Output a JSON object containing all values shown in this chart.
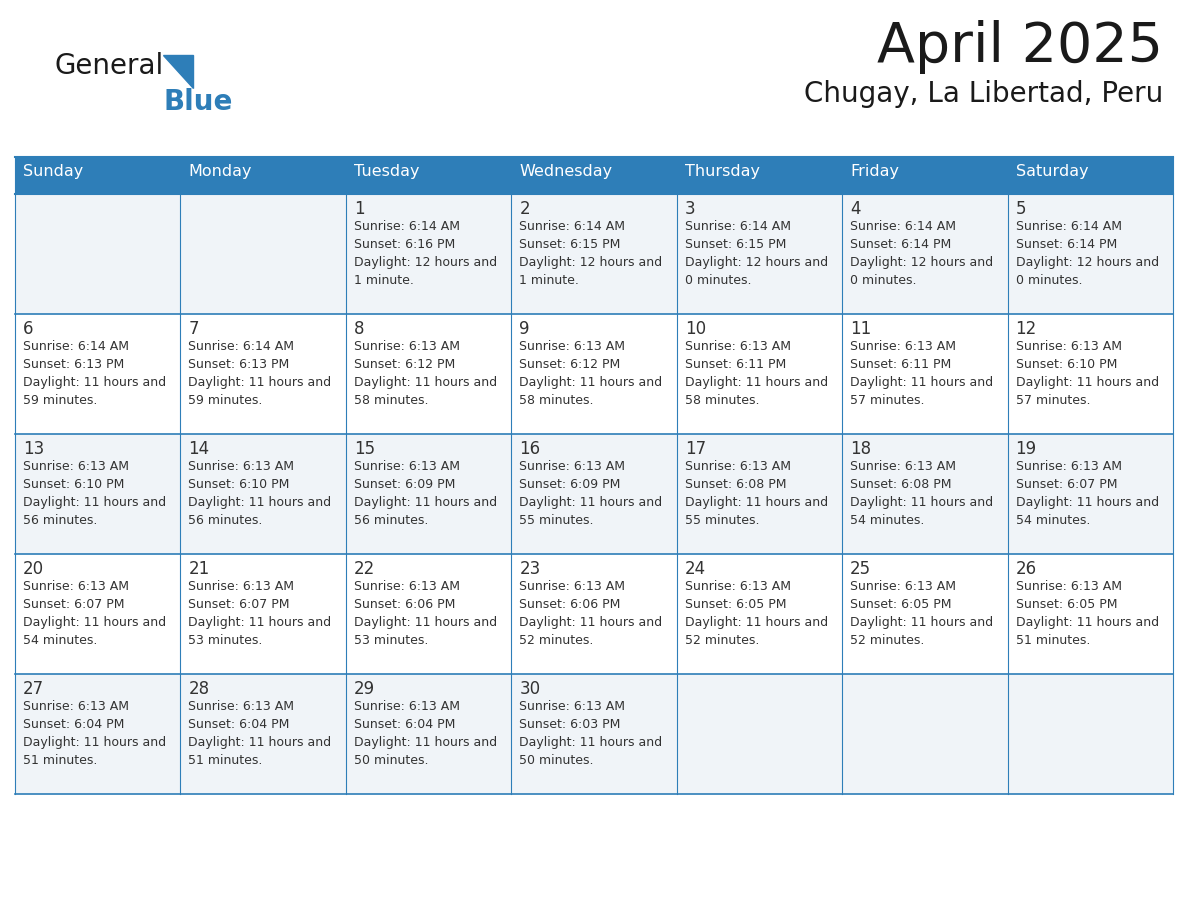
{
  "title": "April 2025",
  "subtitle": "Chugay, La Libertad, Peru",
  "header_bg_color": "#2E7EB8",
  "header_text_color": "#FFFFFF",
  "day_names": [
    "Sunday",
    "Monday",
    "Tuesday",
    "Wednesday",
    "Thursday",
    "Friday",
    "Saturday"
  ],
  "row0_bg": "#F0F4F8",
  "row1_bg": "#FFFFFF",
  "row2_bg": "#F0F4F8",
  "row3_bg": "#FFFFFF",
  "row4_bg": "#F0F4F8",
  "cell_border_color": "#2E7EB8",
  "text_color": "#333333",
  "title_color": "#1a1a1a",
  "logo_general_color": "#1a1a1a",
  "logo_blue_color": "#2E7EB8",
  "days": [
    {
      "day": 1,
      "col": 2,
      "row": 0,
      "sunrise": "6:14 AM",
      "sunset": "6:16 PM",
      "daylight": "12 hours and 1 minute."
    },
    {
      "day": 2,
      "col": 3,
      "row": 0,
      "sunrise": "6:14 AM",
      "sunset": "6:15 PM",
      "daylight": "12 hours and 1 minute."
    },
    {
      "day": 3,
      "col": 4,
      "row": 0,
      "sunrise": "6:14 AM",
      "sunset": "6:15 PM",
      "daylight": "12 hours and 0 minutes."
    },
    {
      "day": 4,
      "col": 5,
      "row": 0,
      "sunrise": "6:14 AM",
      "sunset": "6:14 PM",
      "daylight": "12 hours and 0 minutes."
    },
    {
      "day": 5,
      "col": 6,
      "row": 0,
      "sunrise": "6:14 AM",
      "sunset": "6:14 PM",
      "daylight": "12 hours and 0 minutes."
    },
    {
      "day": 6,
      "col": 0,
      "row": 1,
      "sunrise": "6:14 AM",
      "sunset": "6:13 PM",
      "daylight": "11 hours and 59 minutes."
    },
    {
      "day": 7,
      "col": 1,
      "row": 1,
      "sunrise": "6:14 AM",
      "sunset": "6:13 PM",
      "daylight": "11 hours and 59 minutes."
    },
    {
      "day": 8,
      "col": 2,
      "row": 1,
      "sunrise": "6:13 AM",
      "sunset": "6:12 PM",
      "daylight": "11 hours and 58 minutes."
    },
    {
      "day": 9,
      "col": 3,
      "row": 1,
      "sunrise": "6:13 AM",
      "sunset": "6:12 PM",
      "daylight": "11 hours and 58 minutes."
    },
    {
      "day": 10,
      "col": 4,
      "row": 1,
      "sunrise": "6:13 AM",
      "sunset": "6:11 PM",
      "daylight": "11 hours and 58 minutes."
    },
    {
      "day": 11,
      "col": 5,
      "row": 1,
      "sunrise": "6:13 AM",
      "sunset": "6:11 PM",
      "daylight": "11 hours and 57 minutes."
    },
    {
      "day": 12,
      "col": 6,
      "row": 1,
      "sunrise": "6:13 AM",
      "sunset": "6:10 PM",
      "daylight": "11 hours and 57 minutes."
    },
    {
      "day": 13,
      "col": 0,
      "row": 2,
      "sunrise": "6:13 AM",
      "sunset": "6:10 PM",
      "daylight": "11 hours and 56 minutes."
    },
    {
      "day": 14,
      "col": 1,
      "row": 2,
      "sunrise": "6:13 AM",
      "sunset": "6:10 PM",
      "daylight": "11 hours and 56 minutes."
    },
    {
      "day": 15,
      "col": 2,
      "row": 2,
      "sunrise": "6:13 AM",
      "sunset": "6:09 PM",
      "daylight": "11 hours and 56 minutes."
    },
    {
      "day": 16,
      "col": 3,
      "row": 2,
      "sunrise": "6:13 AM",
      "sunset": "6:09 PM",
      "daylight": "11 hours and 55 minutes."
    },
    {
      "day": 17,
      "col": 4,
      "row": 2,
      "sunrise": "6:13 AM",
      "sunset": "6:08 PM",
      "daylight": "11 hours and 55 minutes."
    },
    {
      "day": 18,
      "col": 5,
      "row": 2,
      "sunrise": "6:13 AM",
      "sunset": "6:08 PM",
      "daylight": "11 hours and 54 minutes."
    },
    {
      "day": 19,
      "col": 6,
      "row": 2,
      "sunrise": "6:13 AM",
      "sunset": "6:07 PM",
      "daylight": "11 hours and 54 minutes."
    },
    {
      "day": 20,
      "col": 0,
      "row": 3,
      "sunrise": "6:13 AM",
      "sunset": "6:07 PM",
      "daylight": "11 hours and 54 minutes."
    },
    {
      "day": 21,
      "col": 1,
      "row": 3,
      "sunrise": "6:13 AM",
      "sunset": "6:07 PM",
      "daylight": "11 hours and 53 minutes."
    },
    {
      "day": 22,
      "col": 2,
      "row": 3,
      "sunrise": "6:13 AM",
      "sunset": "6:06 PM",
      "daylight": "11 hours and 53 minutes."
    },
    {
      "day": 23,
      "col": 3,
      "row": 3,
      "sunrise": "6:13 AM",
      "sunset": "6:06 PM",
      "daylight": "11 hours and 52 minutes."
    },
    {
      "day": 24,
      "col": 4,
      "row": 3,
      "sunrise": "6:13 AM",
      "sunset": "6:05 PM",
      "daylight": "11 hours and 52 minutes."
    },
    {
      "day": 25,
      "col": 5,
      "row": 3,
      "sunrise": "6:13 AM",
      "sunset": "6:05 PM",
      "daylight": "11 hours and 52 minutes."
    },
    {
      "day": 26,
      "col": 6,
      "row": 3,
      "sunrise": "6:13 AM",
      "sunset": "6:05 PM",
      "daylight": "11 hours and 51 minutes."
    },
    {
      "day": 27,
      "col": 0,
      "row": 4,
      "sunrise": "6:13 AM",
      "sunset": "6:04 PM",
      "daylight": "11 hours and 51 minutes."
    },
    {
      "day": 28,
      "col": 1,
      "row": 4,
      "sunrise": "6:13 AM",
      "sunset": "6:04 PM",
      "daylight": "11 hours and 51 minutes."
    },
    {
      "day": 29,
      "col": 2,
      "row": 4,
      "sunrise": "6:13 AM",
      "sunset": "6:04 PM",
      "daylight": "11 hours and 50 minutes."
    },
    {
      "day": 30,
      "col": 3,
      "row": 4,
      "sunrise": "6:13 AM",
      "sunset": "6:03 PM",
      "daylight": "11 hours and 50 minutes."
    }
  ]
}
